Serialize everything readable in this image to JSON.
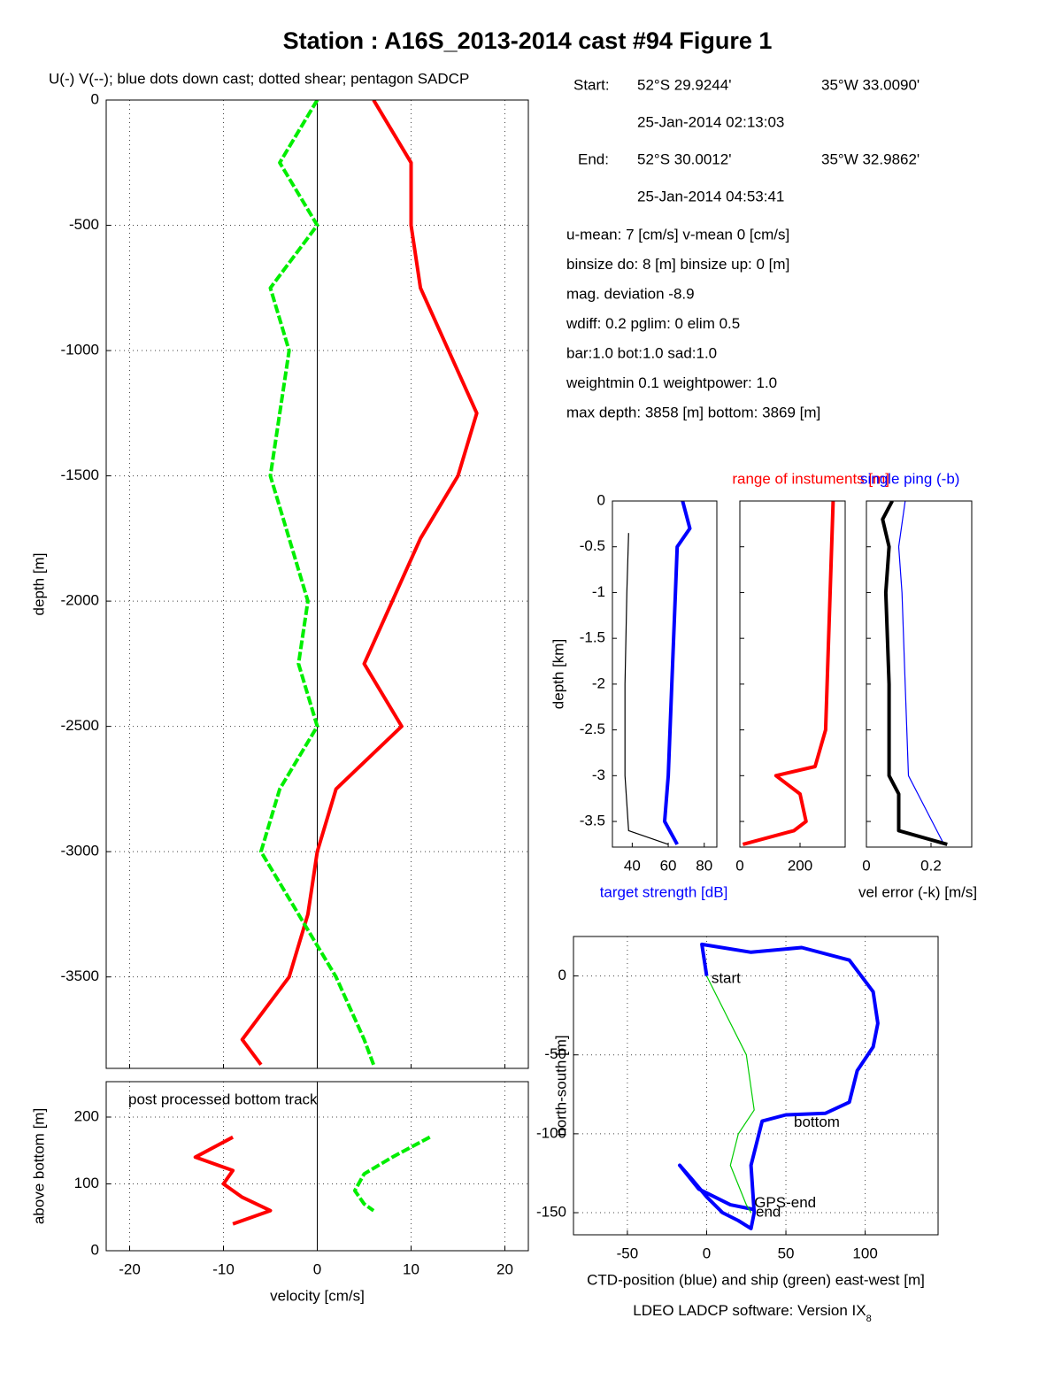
{
  "title": "Station : A16S_2013-2014 cast #94  Figure 1",
  "start": {
    "label": "Start:",
    "lat": "52°S 29.9244'",
    "lon": "35°W 33.0090'",
    "time": "25-Jan-2014 02:13:03"
  },
  "end": {
    "label": "End:",
    "lat": "52°S 30.0012'",
    "lon": "35°W 32.9862'",
    "time": "25-Jan-2014 04:53:41"
  },
  "params": [
    "u-mean:   7 [cm/s]    v-mean   0 [cm/s]",
    "binsize do: 8 [m]  binsize up:  0 [m]",
    "mag. deviation -8.9",
    "wdiff: 0.2  pglim: 0  elim 0.5",
    "  bar:1.0 bot:1.0 sad:1.0",
    "weightmin 0.1  weightpower: 1.0",
    "max depth: 3858 [m]   bottom: 3869 [m]"
  ],
  "footer": "LDEO LADCP software: Version IX",
  "footer_subscript": "8",
  "chart_data": [
    {
      "type": "line",
      "title": "U(-) V(--); blue dots down cast; dotted shear; pentagon SADCP",
      "ylabel": "depth [m]",
      "xlim": [
        -22.5,
        22.5
      ],
      "ylim": [
        -3865,
        0
      ],
      "xticks": [
        -20,
        -10,
        0,
        10,
        20
      ],
      "xtick_labels": false,
      "yticks": [
        0,
        -500,
        -1000,
        -1500,
        -2000,
        -2500,
        -3000,
        -3500
      ],
      "grid": true,
      "zero_line": true,
      "series": [
        {
          "color": "#ff0000",
          "dash": false,
          "x": [
            6,
            10,
            10,
            11,
            14,
            17,
            15,
            11,
            8,
            5,
            9,
            2,
            0,
            -1,
            -3,
            -8,
            -6
          ],
          "y": [
            0,
            -250,
            -500,
            -750,
            -1000,
            -1250,
            -1500,
            -1750,
            -2000,
            -2250,
            -2500,
            -2750,
            -3000,
            -3250,
            -3500,
            -3750,
            -3850
          ]
        },
        {
          "color": "#00ee00",
          "dash": true,
          "x": [
            0,
            -4,
            0,
            -5,
            -3,
            -4,
            -5,
            -3,
            -1,
            -2,
            0,
            -4,
            -6,
            -2,
            2,
            5,
            6
          ],
          "y": [
            0,
            -250,
            -500,
            -750,
            -1000,
            -1250,
            -1500,
            -1750,
            -2000,
            -2250,
            -2500,
            -2750,
            -3000,
            -3250,
            -3500,
            -3750,
            -3850
          ]
        }
      ]
    },
    {
      "type": "line",
      "ylabel": "above bottom [m]",
      "xlabel": "velocity [cm/s]",
      "annotation": "post processed bottom track",
      "xlim": [
        -22.5,
        22.5
      ],
      "ylim": [
        0,
        253
      ],
      "xticks": [
        -20,
        -10,
        0,
        10,
        20
      ],
      "xtick_labels": true,
      "yticks": [
        0,
        100,
        200
      ],
      "grid": true,
      "zero_line": true,
      "series": [
        {
          "color": "#ff0000",
          "dash": false,
          "x": [
            -9,
            -13,
            -9,
            -10,
            -8,
            -5,
            -9
          ],
          "y": [
            170,
            140,
            120,
            100,
            80,
            60,
            40
          ]
        },
        {
          "color": "#00ee00",
          "dash": true,
          "x": [
            12,
            8,
            5,
            4,
            5,
            6
          ],
          "y": [
            170,
            140,
            115,
            90,
            70,
            60
          ]
        }
      ]
    },
    {
      "type": "line",
      "ylabel": "depth [km]",
      "xlabel": "target strength [dB]",
      "xlabel_color": "#0000ff",
      "xlim": [
        29,
        87
      ],
      "ylim": [
        -3.78,
        0
      ],
      "xticks": [
        40,
        60,
        80
      ],
      "xtick_labels": true,
      "yticks": [
        0,
        -0.5,
        -1,
        -1.5,
        -2,
        -2.5,
        -3,
        -3.5
      ],
      "grid": false,
      "series": [
        {
          "color": "#0000ff",
          "dash": false,
          "x": [
            68,
            72,
            65,
            64,
            62,
            60,
            58,
            65
          ],
          "y": [
            0,
            -0.3,
            -0.5,
            -1,
            -2,
            -3,
            -3.5,
            -3.75
          ]
        },
        {
          "color": "#000000",
          "dash": false,
          "thin": true,
          "x": [
            38,
            37,
            36,
            36,
            38,
            60
          ],
          "y": [
            -0.35,
            -1,
            -2,
            -3,
            -3.6,
            -3.75
          ]
        }
      ]
    },
    {
      "type": "line",
      "title": "range of instuments [m]",
      "title_color": "#ff0000",
      "xlim": [
        0,
        350
      ],
      "ylim": [
        -3.78,
        0
      ],
      "xticks": [
        0,
        200
      ],
      "xtick_labels": true,
      "yticks": [
        0,
        -0.5,
        -1,
        -1.5,
        -2,
        -2.5,
        -3,
        -3.5
      ],
      "ytick_labels": false,
      "grid": false,
      "series": [
        {
          "color": "#ff0000",
          "dash": false,
          "x": [
            310,
            305,
            300,
            290,
            285,
            250,
            120,
            200,
            220,
            180,
            10
          ],
          "y": [
            0,
            -0.5,
            -1,
            -2,
            -2.5,
            -2.9,
            -3.0,
            -3.2,
            -3.5,
            -3.6,
            -3.75
          ]
        }
      ]
    },
    {
      "type": "line",
      "title": "single ping (-b)",
      "title_color": "#0000ff",
      "xlabel": "vel error (-k) [m/s]",
      "xlim": [
        0,
        0.326
      ],
      "ylim": [
        -3.78,
        0
      ],
      "xticks": [
        0,
        0.2
      ],
      "xtick_labels": true,
      "yticks": [
        0,
        -0.5,
        -1,
        -1.5,
        -2,
        -2.5,
        -3,
        -3.5
      ],
      "ytick_labels": false,
      "grid": false,
      "series": [
        {
          "color": "#0000ff",
          "dash": false,
          "thin": true,
          "x": [
            0.12,
            0.1,
            0.11,
            0.12,
            0.13,
            0.24
          ],
          "y": [
            0,
            -0.5,
            -1,
            -2,
            -3,
            -3.75
          ]
        },
        {
          "color": "#000000",
          "dash": false,
          "x": [
            0.08,
            0.05,
            0.07,
            0.06,
            0.07,
            0.07,
            0.1,
            0.1,
            0.25
          ],
          "y": [
            0,
            -0.2,
            -0.5,
            -1,
            -2,
            -3,
            -3.2,
            -3.6,
            -3.75
          ]
        }
      ]
    },
    {
      "type": "line",
      "xlabel": "CTD-position (blue) and ship (green) east-west [m]",
      "ylabel": "north-south [m]",
      "xlim": [
        -84,
        146
      ],
      "ylim": [
        -164,
        25
      ],
      "xticks": [
        -50,
        0,
        50,
        100
      ],
      "xtick_labels": true,
      "yticks": [
        0,
        -50,
        -100,
        -150
      ],
      "grid": true,
      "series": [
        {
          "color": "#0000ff",
          "dash": false,
          "x": [
            0,
            -3,
            28,
            60,
            90,
            105,
            108,
            105,
            95,
            90,
            75,
            50,
            35,
            28,
            30,
            28,
            20,
            10,
            0,
            -10,
            -17,
            -5,
            15,
            30
          ],
          "y": [
            0,
            20,
            15,
            18,
            10,
            -10,
            -30,
            -45,
            -60,
            -80,
            -87,
            -88,
            -92,
            -120,
            -150,
            -160,
            -155,
            -150,
            -140,
            -128,
            -120,
            -135,
            -145,
            -148
          ]
        },
        {
          "color": "#00cc00",
          "dash": false,
          "thin": true,
          "x": [
            0,
            10,
            25,
            30,
            20,
            15,
            25,
            28
          ],
          "y": [
            0,
            -20,
            -50,
            -85,
            -100,
            -120,
            -145,
            -150
          ]
        }
      ],
      "annotations": [
        {
          "text": "start",
          "x": 3,
          "y": -2
        },
        {
          "text": "bottom",
          "x": 55,
          "y": -93
        },
        {
          "text": "GPS-end",
          "x": 30,
          "y": -144
        },
        {
          "text": "end",
          "x": 31,
          "y": -150
        }
      ]
    }
  ]
}
